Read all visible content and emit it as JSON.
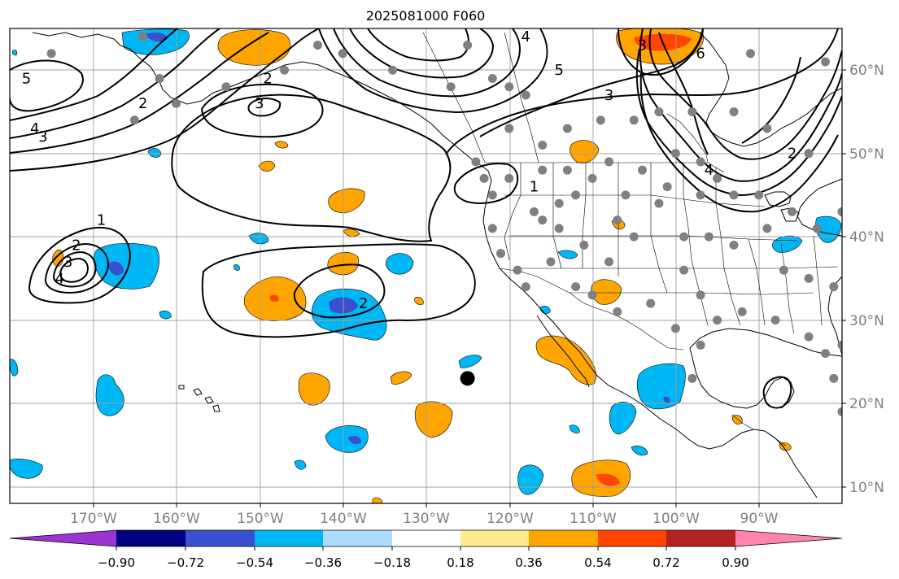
{
  "title": "2025081000 F060",
  "map": {
    "projection": "PlateCarree",
    "lon_range": [
      -180,
      -80
    ],
    "lat_range": [
      8,
      65
    ],
    "lon_ticks": [
      {
        "value": -170,
        "label": "170°W"
      },
      {
        "value": -160,
        "label": "160°W"
      },
      {
        "value": -150,
        "label": "150°W"
      },
      {
        "value": -140,
        "label": "140°W"
      },
      {
        "value": -130,
        "label": "130°W"
      },
      {
        "value": -120,
        "label": "120°W"
      },
      {
        "value": -110,
        "label": "110°W"
      },
      {
        "value": -100,
        "label": "100°W"
      },
      {
        "value": -90,
        "label": "90°W"
      }
    ],
    "lat_ticks": [
      {
        "value": 10,
        "label": "10°N"
      },
      {
        "value": 20,
        "label": "20°N"
      },
      {
        "value": 30,
        "label": "30°N"
      },
      {
        "value": 40,
        "label": "40°N"
      },
      {
        "value": 50,
        "label": "50°N"
      },
      {
        "value": 60,
        "label": "60°N"
      }
    ],
    "gridlines": true,
    "tick_label_color": "#808080",
    "contour_labels": [
      {
        "text": "5",
        "lon": -178,
        "lat": 59
      },
      {
        "text": "4",
        "lon": -177,
        "lat": 53
      },
      {
        "text": "3",
        "lon": -176,
        "lat": 52
      },
      {
        "text": "2",
        "lon": -164,
        "lat": 56
      },
      {
        "text": "2",
        "lon": -149,
        "lat": 59
      },
      {
        "text": "3",
        "lon": -150,
        "lat": 56
      },
      {
        "text": "1",
        "lon": -169,
        "lat": 42
      },
      {
        "text": "2",
        "lon": -172,
        "lat": 39
      },
      {
        "text": "3",
        "lon": -173,
        "lat": 37
      },
      {
        "text": "4",
        "lon": -174,
        "lat": 35
      },
      {
        "text": "2",
        "lon": -137.5,
        "lat": 32
      },
      {
        "text": "1",
        "lon": -117,
        "lat": 46
      },
      {
        "text": "4",
        "lon": -118,
        "lat": 64
      },
      {
        "text": "5",
        "lon": -114,
        "lat": 60
      },
      {
        "text": "3",
        "lon": -108,
        "lat": 57
      },
      {
        "text": "3",
        "lon": -104,
        "lat": 63
      },
      {
        "text": "6",
        "lon": -97,
        "lat": 62
      },
      {
        "text": "4",
        "lon": -96,
        "lat": 48
      },
      {
        "text": "2",
        "lon": -86,
        "lat": 50
      }
    ],
    "stations_color": "#808080",
    "stations": [
      [
        -175,
        62
      ],
      [
        -164,
        64
      ],
      [
        -162,
        59
      ],
      [
        -165,
        54
      ],
      [
        -160,
        56
      ],
      [
        -154,
        58
      ],
      [
        -147,
        60
      ],
      [
        -143,
        63
      ],
      [
        -140,
        62
      ],
      [
        -134,
        60
      ],
      [
        -127,
        58
      ],
      [
        -125,
        63
      ],
      [
        -122,
        59
      ],
      [
        -120,
        58
      ],
      [
        -118,
        57
      ],
      [
        -120,
        53
      ],
      [
        -116,
        51
      ],
      [
        -113,
        53
      ],
      [
        -109,
        54
      ],
      [
        -105,
        54
      ],
      [
        -102,
        55
      ],
      [
        -98,
        55
      ],
      [
        -93,
        55
      ],
      [
        -89,
        53
      ],
      [
        -84,
        50
      ],
      [
        -82,
        61
      ],
      [
        -91,
        62
      ],
      [
        -124,
        49
      ],
      [
        -123,
        47
      ],
      [
        -122,
        45
      ],
      [
        -122,
        41
      ],
      [
        -121,
        38
      ],
      [
        -119,
        36
      ],
      [
        -118,
        34
      ],
      [
        -114,
        41
      ],
      [
        -112,
        45
      ],
      [
        -110,
        47
      ],
      [
        -108,
        49
      ],
      [
        -104,
        48
      ],
      [
        -100,
        50
      ],
      [
        -97,
        49
      ],
      [
        -95,
        47
      ],
      [
        -102,
        44
      ],
      [
        -99,
        40
      ],
      [
        -96,
        40
      ],
      [
        -93,
        39
      ],
      [
        -89,
        41
      ],
      [
        -87,
        36
      ],
      [
        -84,
        35
      ],
      [
        -81,
        34
      ],
      [
        -86,
        43
      ],
      [
        -83,
        41
      ],
      [
        -80,
        43
      ],
      [
        -78,
        39
      ],
      [
        -105,
        40
      ],
      [
        -108,
        37
      ],
      [
        -110,
        33
      ],
      [
        -107,
        31
      ],
      [
        -103,
        32
      ],
      [
        -99,
        36
      ],
      [
        -97,
        33
      ],
      [
        -95,
        30
      ],
      [
        -92,
        31
      ],
      [
        -88,
        30
      ],
      [
        -84,
        28
      ],
      [
        -82,
        26
      ],
      [
        -81,
        23
      ],
      [
        -97,
        27
      ],
      [
        -98,
        23
      ],
      [
        -100,
        29
      ],
      [
        -112,
        34
      ],
      [
        -115,
        37
      ],
      [
        -106,
        45
      ],
      [
        -101,
        46
      ],
      [
        -97,
        45
      ],
      [
        -93,
        45
      ],
      [
        -90,
        45
      ],
      [
        -113,
        48
      ],
      [
        -116,
        48
      ],
      [
        -120,
        47
      ],
      [
        -80,
        27
      ],
      [
        -80,
        19
      ],
      [
        -114,
        44
      ],
      [
        -116,
        42
      ],
      [
        -117,
        43
      ],
      [
        -111,
        39
      ],
      [
        -107,
        42
      ]
    ],
    "marker": {
      "lon": -125,
      "lat": 23,
      "label": "storm-center-marker"
    }
  },
  "colorbar": {
    "ticks": [
      "−0.90",
      "−0.72",
      "−0.54",
      "−0.36",
      "−0.18",
      "0.18",
      "0.36",
      "0.54",
      "0.72",
      "0.90"
    ],
    "colors": [
      "#9a35d1",
      "#000080",
      "#3a50cf",
      "#00b7f5",
      "#abdcfb",
      "#ffffff",
      "#ffeb8c",
      "#ffa500",
      "#ff4500",
      "#b22222",
      "#ff85ad"
    ],
    "extend": "both"
  }
}
